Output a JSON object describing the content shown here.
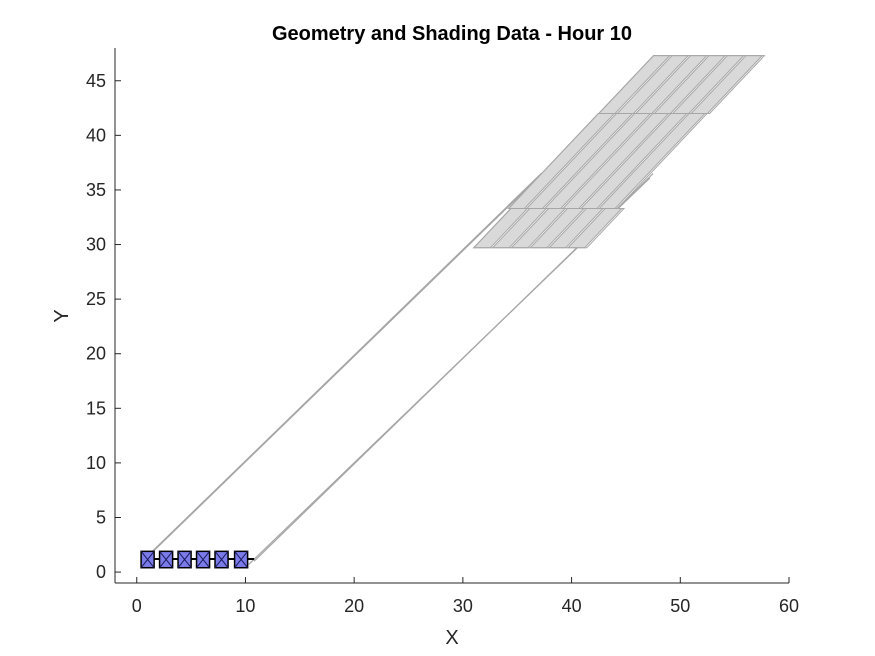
{
  "chart_data": {
    "type": "polygon-plot",
    "title": "Geometry and Shading Data - Hour 10",
    "xlabel": "X",
    "ylabel": "Y",
    "xlim": [
      -2,
      60
    ],
    "ylim": [
      -1,
      48
    ],
    "xticks": [
      0,
      10,
      20,
      30,
      40,
      50,
      60
    ],
    "yticks": [
      0,
      5,
      10,
      15,
      20,
      25,
      30,
      35,
      40,
      45
    ],
    "grid": false,
    "colors": {
      "shadow_fill": "#d9d9d9",
      "shadow_edge": "#a6a6a6",
      "module_fill": "#7b7bea",
      "module_edge": "#000000",
      "row_line": "#000000"
    },
    "pv_row": {
      "x_start": 0.5,
      "x_end": 10.8,
      "y": 1.2
    },
    "modules": [
      {
        "x0": 0.4,
        "x1": 1.6,
        "y0": 0.4,
        "y1": 1.9
      },
      {
        "x0": 2.1,
        "x1": 3.3,
        "y0": 0.4,
        "y1": 1.9
      },
      {
        "x0": 3.8,
        "x1": 5.0,
        "y0": 0.4,
        "y1": 1.9
      },
      {
        "x0": 5.5,
        "x1": 6.7,
        "y0": 0.4,
        "y1": 1.9
      },
      {
        "x0": 7.2,
        "x1": 8.4,
        "y0": 0.4,
        "y1": 1.9
      },
      {
        "x0": 9.0,
        "x1": 10.2,
        "y0": 0.4,
        "y1": 1.9
      }
    ],
    "shadow_corridor": [
      {
        "x0": 0.5,
        "y0": 1.0,
        "x1": 37.2,
        "y1": 36.5
      },
      {
        "x0": 0.8,
        "y0": 1.2,
        "x1": 37.0,
        "y1": 36.2
      },
      {
        "x0": 10.8,
        "y0": 1.0,
        "x1": 47.5,
        "y1": 36.5
      },
      {
        "x0": 10.3,
        "y0": 0.7,
        "x1": 47.2,
        "y1": 36.1
      }
    ],
    "shade_band_lower": {
      "y0": 29.7,
      "y1": 33.3,
      "x_left_bottom": 31.0,
      "x_right_bottom": 41.4,
      "dx_per_y": 0.95,
      "segments": 6
    },
    "shade_band_middle": {
      "y0": 33.3,
      "y1": 42.0,
      "x_left_bottom": 34.2,
      "x_right_bottom": 44.2,
      "dx_per_y": 0.95,
      "segments": 6
    },
    "shade_band_upper": {
      "y0": 42.0,
      "y1": 47.3,
      "x_left_bottom": 42.5,
      "x_right_bottom": 52.7,
      "dx_per_y": 0.95,
      "segments": 6
    }
  }
}
